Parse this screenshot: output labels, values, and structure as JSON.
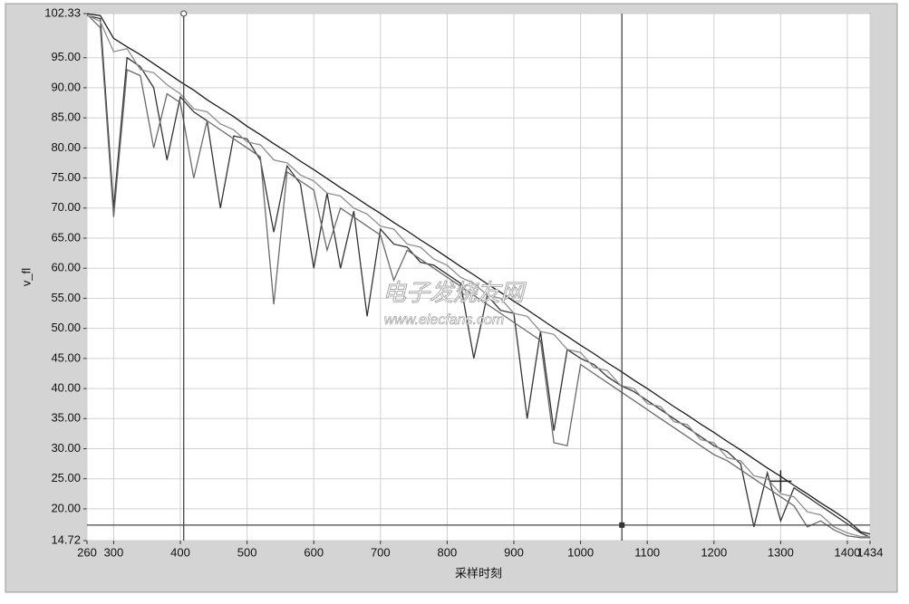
{
  "chart_data": {
    "type": "line",
    "x_label": "采样时刻",
    "y_label": "v_fl",
    "annotations": [
      "电子发烧友网",
      "www.elecfans.com"
    ],
    "grid": true,
    "xlim": [
      260,
      1434
    ],
    "ylim": [
      14.72,
      102.33
    ],
    "xticks": [
      260,
      300,
      400,
      500,
      600,
      700,
      800,
      900,
      1000,
      1100,
      1200,
      1300,
      1400,
      1434
    ],
    "yticks": [
      14.72,
      {
        "value": 20,
        "label": "20.00"
      },
      {
        "value": 25,
        "label": "25.00"
      },
      {
        "value": 30,
        "label": "30.00"
      },
      {
        "value": 35,
        "label": "35.00"
      },
      {
        "value": 40,
        "label": "40.00"
      },
      {
        "value": 45,
        "label": "45.00"
      },
      {
        "value": 50,
        "label": "50.00"
      },
      {
        "value": 55,
        "label": "55.00"
      },
      {
        "value": 60,
        "label": "60.00"
      },
      {
        "value": 65,
        "label": "65.00"
      },
      {
        "value": 70,
        "label": "70.00"
      },
      {
        "value": 75,
        "label": "75.00"
      },
      {
        "value": 80,
        "label": "80.00"
      },
      {
        "value": 85,
        "label": "85.00"
      },
      {
        "value": 90,
        "label": "90.00"
      },
      {
        "value": 95,
        "label": "95.00"
      },
      102.33
    ],
    "cursor_x": [
      405,
      1062
    ],
    "cursor_y": [
      17.3
    ],
    "marker": {
      "x": 1300,
      "y": 24.6
    },
    "x": [
      260,
      280,
      300,
      320,
      340,
      360,
      380,
      400,
      420,
      440,
      460,
      480,
      500,
      520,
      540,
      560,
      580,
      600,
      620,
      640,
      660,
      680,
      700,
      720,
      740,
      760,
      780,
      800,
      820,
      840,
      860,
      880,
      900,
      920,
      940,
      960,
      980,
      1000,
      1020,
      1040,
      1060,
      1080,
      1100,
      1120,
      1140,
      1160,
      1180,
      1200,
      1220,
      1240,
      1260,
      1280,
      1300,
      1320,
      1340,
      1360,
      1380,
      1400,
      1420,
      1434
    ],
    "series": [
      {
        "color": "#1a1a1a",
        "values": [
          102.3,
          102.0,
          98.2,
          96.8,
          95.5,
          94.0,
          92.5,
          91.0,
          89.6,
          88.0,
          86.6,
          85.2,
          83.6,
          82.2,
          80.7,
          79.3,
          77.8,
          76.4,
          74.9,
          73.4,
          72.0,
          70.5,
          69.1,
          67.6,
          66.2,
          64.7,
          63.3,
          61.8,
          60.3,
          58.9,
          57.4,
          56.0,
          54.5,
          53.1,
          51.6,
          50.1,
          48.7,
          47.2,
          45.8,
          44.3,
          42.9,
          41.4,
          40.0,
          38.5,
          37.0,
          35.6,
          34.1,
          32.7,
          31.2,
          29.8,
          28.3,
          26.8,
          25.4,
          23.9,
          22.5,
          21.0,
          19.6,
          18.1,
          16.2,
          15.8
        ]
      },
      {
        "color": "#333333",
        "values": [
          102.0,
          101.5,
          70.0,
          95.0,
          93.5,
          90.0,
          78.0,
          88.5,
          86.0,
          84.5,
          70.0,
          82.0,
          81.5,
          78.0,
          66.0,
          77.0,
          74.0,
          60.0,
          72.5,
          60.0,
          69.5,
          52.0,
          66.5,
          64.0,
          63.5,
          61.0,
          60.5,
          59.0,
          57.5,
          45.0,
          55.5,
          53.0,
          52.5,
          35.0,
          49.5,
          33.0,
          46.5,
          45.0,
          44.0,
          42.0,
          40.5,
          39.5,
          38.0,
          36.5,
          35.0,
          33.5,
          32.0,
          30.5,
          29.5,
          27.5,
          17.0,
          26.0,
          18.0,
          23.5,
          22.0,
          20.5,
          19.0,
          17.5,
          16.0,
          15.3
        ]
      },
      {
        "color": "#6a6a6a",
        "values": [
          102.2,
          100.0,
          68.5,
          93.0,
          92.0,
          80.0,
          89.0,
          87.5,
          75.0,
          84.5,
          83.0,
          81.5,
          80.0,
          78.5,
          54.0,
          76.0,
          74.5,
          73.0,
          63.0,
          70.0,
          68.5,
          67.0,
          65.5,
          58.0,
          63.0,
          61.5,
          60.0,
          58.5,
          57.0,
          55.5,
          54.0,
          52.5,
          51.0,
          49.5,
          48.0,
          31.0,
          30.5,
          44.0,
          42.5,
          41.0,
          39.5,
          38.0,
          36.5,
          35.0,
          33.5,
          32.0,
          30.5,
          29.0,
          28.0,
          26.5,
          25.0,
          23.5,
          22.0,
          20.5,
          17.0,
          18.0,
          16.5,
          15.5,
          15.2,
          15.2
        ]
      },
      {
        "color": "#8c8c8c",
        "values": [
          102.1,
          101.0,
          96.0,
          96.5,
          93.0,
          92.5,
          90.5,
          89.0,
          86.5,
          86.0,
          84.0,
          83.0,
          81.0,
          80.5,
          78.0,
          77.5,
          75.5,
          74.5,
          72.5,
          72.0,
          70.0,
          69.0,
          67.0,
          66.5,
          64.0,
          63.5,
          61.5,
          60.5,
          58.5,
          57.5,
          55.5,
          55.0,
          52.5,
          52.0,
          49.5,
          49.0,
          46.5,
          46.0,
          43.5,
          43.0,
          40.5,
          40.0,
          37.5,
          37.0,
          34.5,
          34.0,
          31.5,
          31.0,
          28.5,
          28.0,
          25.5,
          25.0,
          22.5,
          22.0,
          19.5,
          19.0,
          17.0,
          16.0,
          15.4,
          15.4
        ]
      }
    ]
  }
}
